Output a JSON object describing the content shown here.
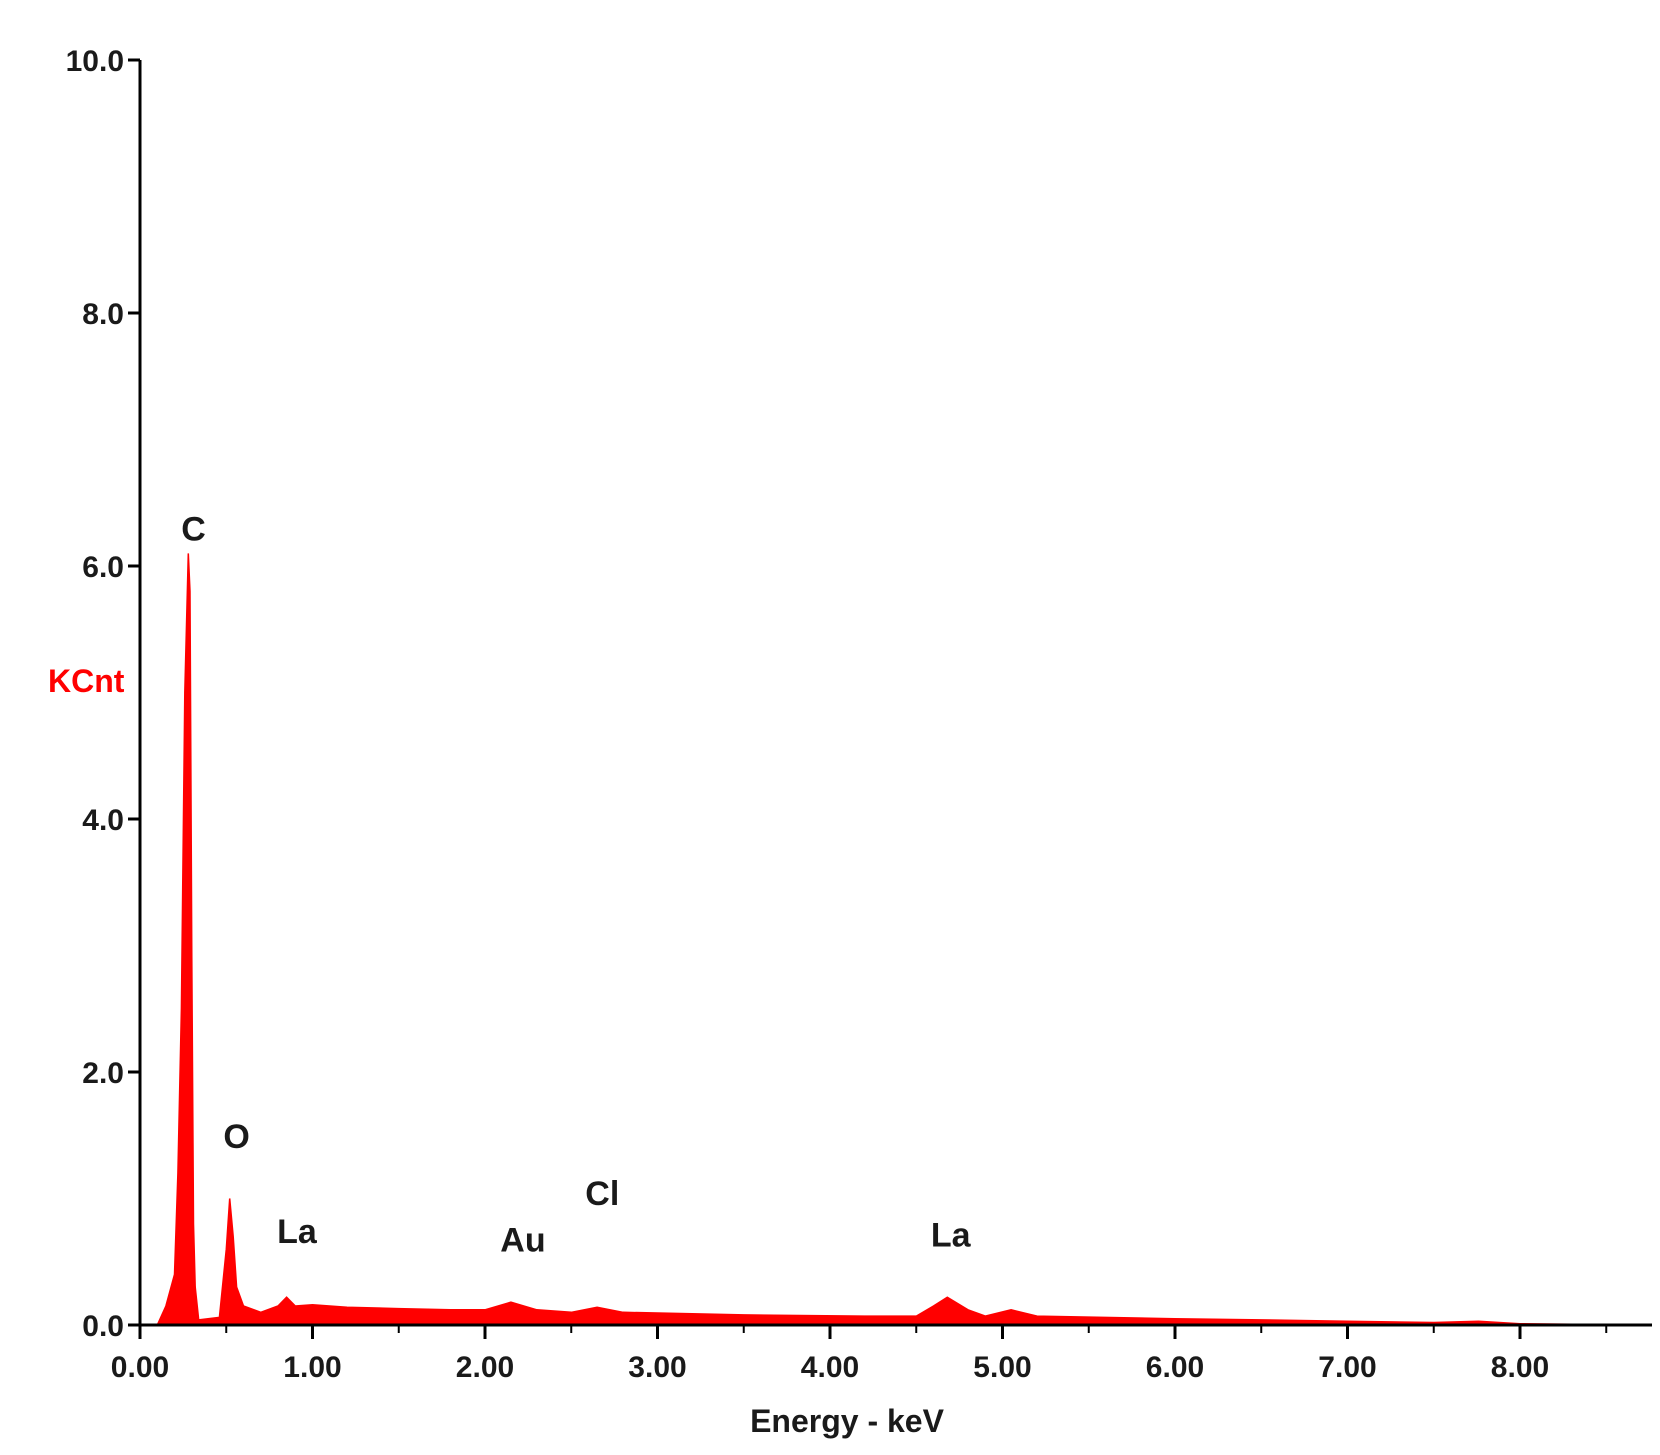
{
  "chart_data": {
    "type": "area",
    "title": "",
    "xlabel": "Energy - keV",
    "ylabel": "KCnt",
    "xlim": [
      0,
      8.72
    ],
    "ylim": [
      0,
      10
    ],
    "x_ticks": [
      "0.00",
      "1.00",
      "2.00",
      "3.00",
      "4.00",
      "5.00",
      "6.00",
      "7.00",
      "8.00"
    ],
    "y_ticks": [
      "0.0",
      "2.0",
      "4.0",
      "6.0",
      "8.0",
      "10.0"
    ],
    "series": [
      {
        "color": "#ff0000",
        "points": [
          [
            0.1,
            0.0
          ],
          [
            0.15,
            0.15
          ],
          [
            0.2,
            0.4
          ],
          [
            0.22,
            1.2
          ],
          [
            0.24,
            2.5
          ],
          [
            0.26,
            5.0
          ],
          [
            0.28,
            6.1
          ],
          [
            0.29,
            5.8
          ],
          [
            0.3,
            2.9
          ],
          [
            0.31,
            0.8
          ],
          [
            0.32,
            0.3
          ],
          [
            0.34,
            0.04
          ],
          [
            0.46,
            0.06
          ],
          [
            0.5,
            0.6
          ],
          [
            0.52,
            1.0
          ],
          [
            0.54,
            0.7
          ],
          [
            0.56,
            0.3
          ],
          [
            0.6,
            0.15
          ],
          [
            0.7,
            0.1
          ],
          [
            0.8,
            0.15
          ],
          [
            0.85,
            0.22
          ],
          [
            0.9,
            0.15
          ],
          [
            1.0,
            0.16
          ],
          [
            1.2,
            0.14
          ],
          [
            1.5,
            0.13
          ],
          [
            1.8,
            0.12
          ],
          [
            2.0,
            0.12
          ],
          [
            2.15,
            0.18
          ],
          [
            2.3,
            0.12
          ],
          [
            2.5,
            0.1
          ],
          [
            2.65,
            0.14
          ],
          [
            2.8,
            0.1
          ],
          [
            3.5,
            0.08
          ],
          [
            4.2,
            0.07
          ],
          [
            4.5,
            0.07
          ],
          [
            4.6,
            0.15
          ],
          [
            4.68,
            0.22
          ],
          [
            4.8,
            0.12
          ],
          [
            4.9,
            0.07
          ],
          [
            5.05,
            0.12
          ],
          [
            5.2,
            0.07
          ],
          [
            6.0,
            0.05
          ],
          [
            6.5,
            0.04
          ],
          [
            7.0,
            0.03
          ],
          [
            7.5,
            0.02
          ],
          [
            7.76,
            0.03
          ],
          [
            8.0,
            0.01
          ],
          [
            8.72,
            0.0
          ]
        ]
      }
    ],
    "annotations": [
      {
        "text": "C",
        "x": 0.31,
        "y": 6.2
      },
      {
        "text": "O",
        "x": 0.56,
        "y": 1.4
      },
      {
        "text": "La",
        "x": 0.91,
        "y": 0.65
      },
      {
        "text": "Au",
        "x": 2.22,
        "y": 0.58
      },
      {
        "text": "Cl",
        "x": 2.68,
        "y": 0.95
      },
      {
        "text": "La",
        "x": 4.7,
        "y": 0.62
      }
    ]
  }
}
